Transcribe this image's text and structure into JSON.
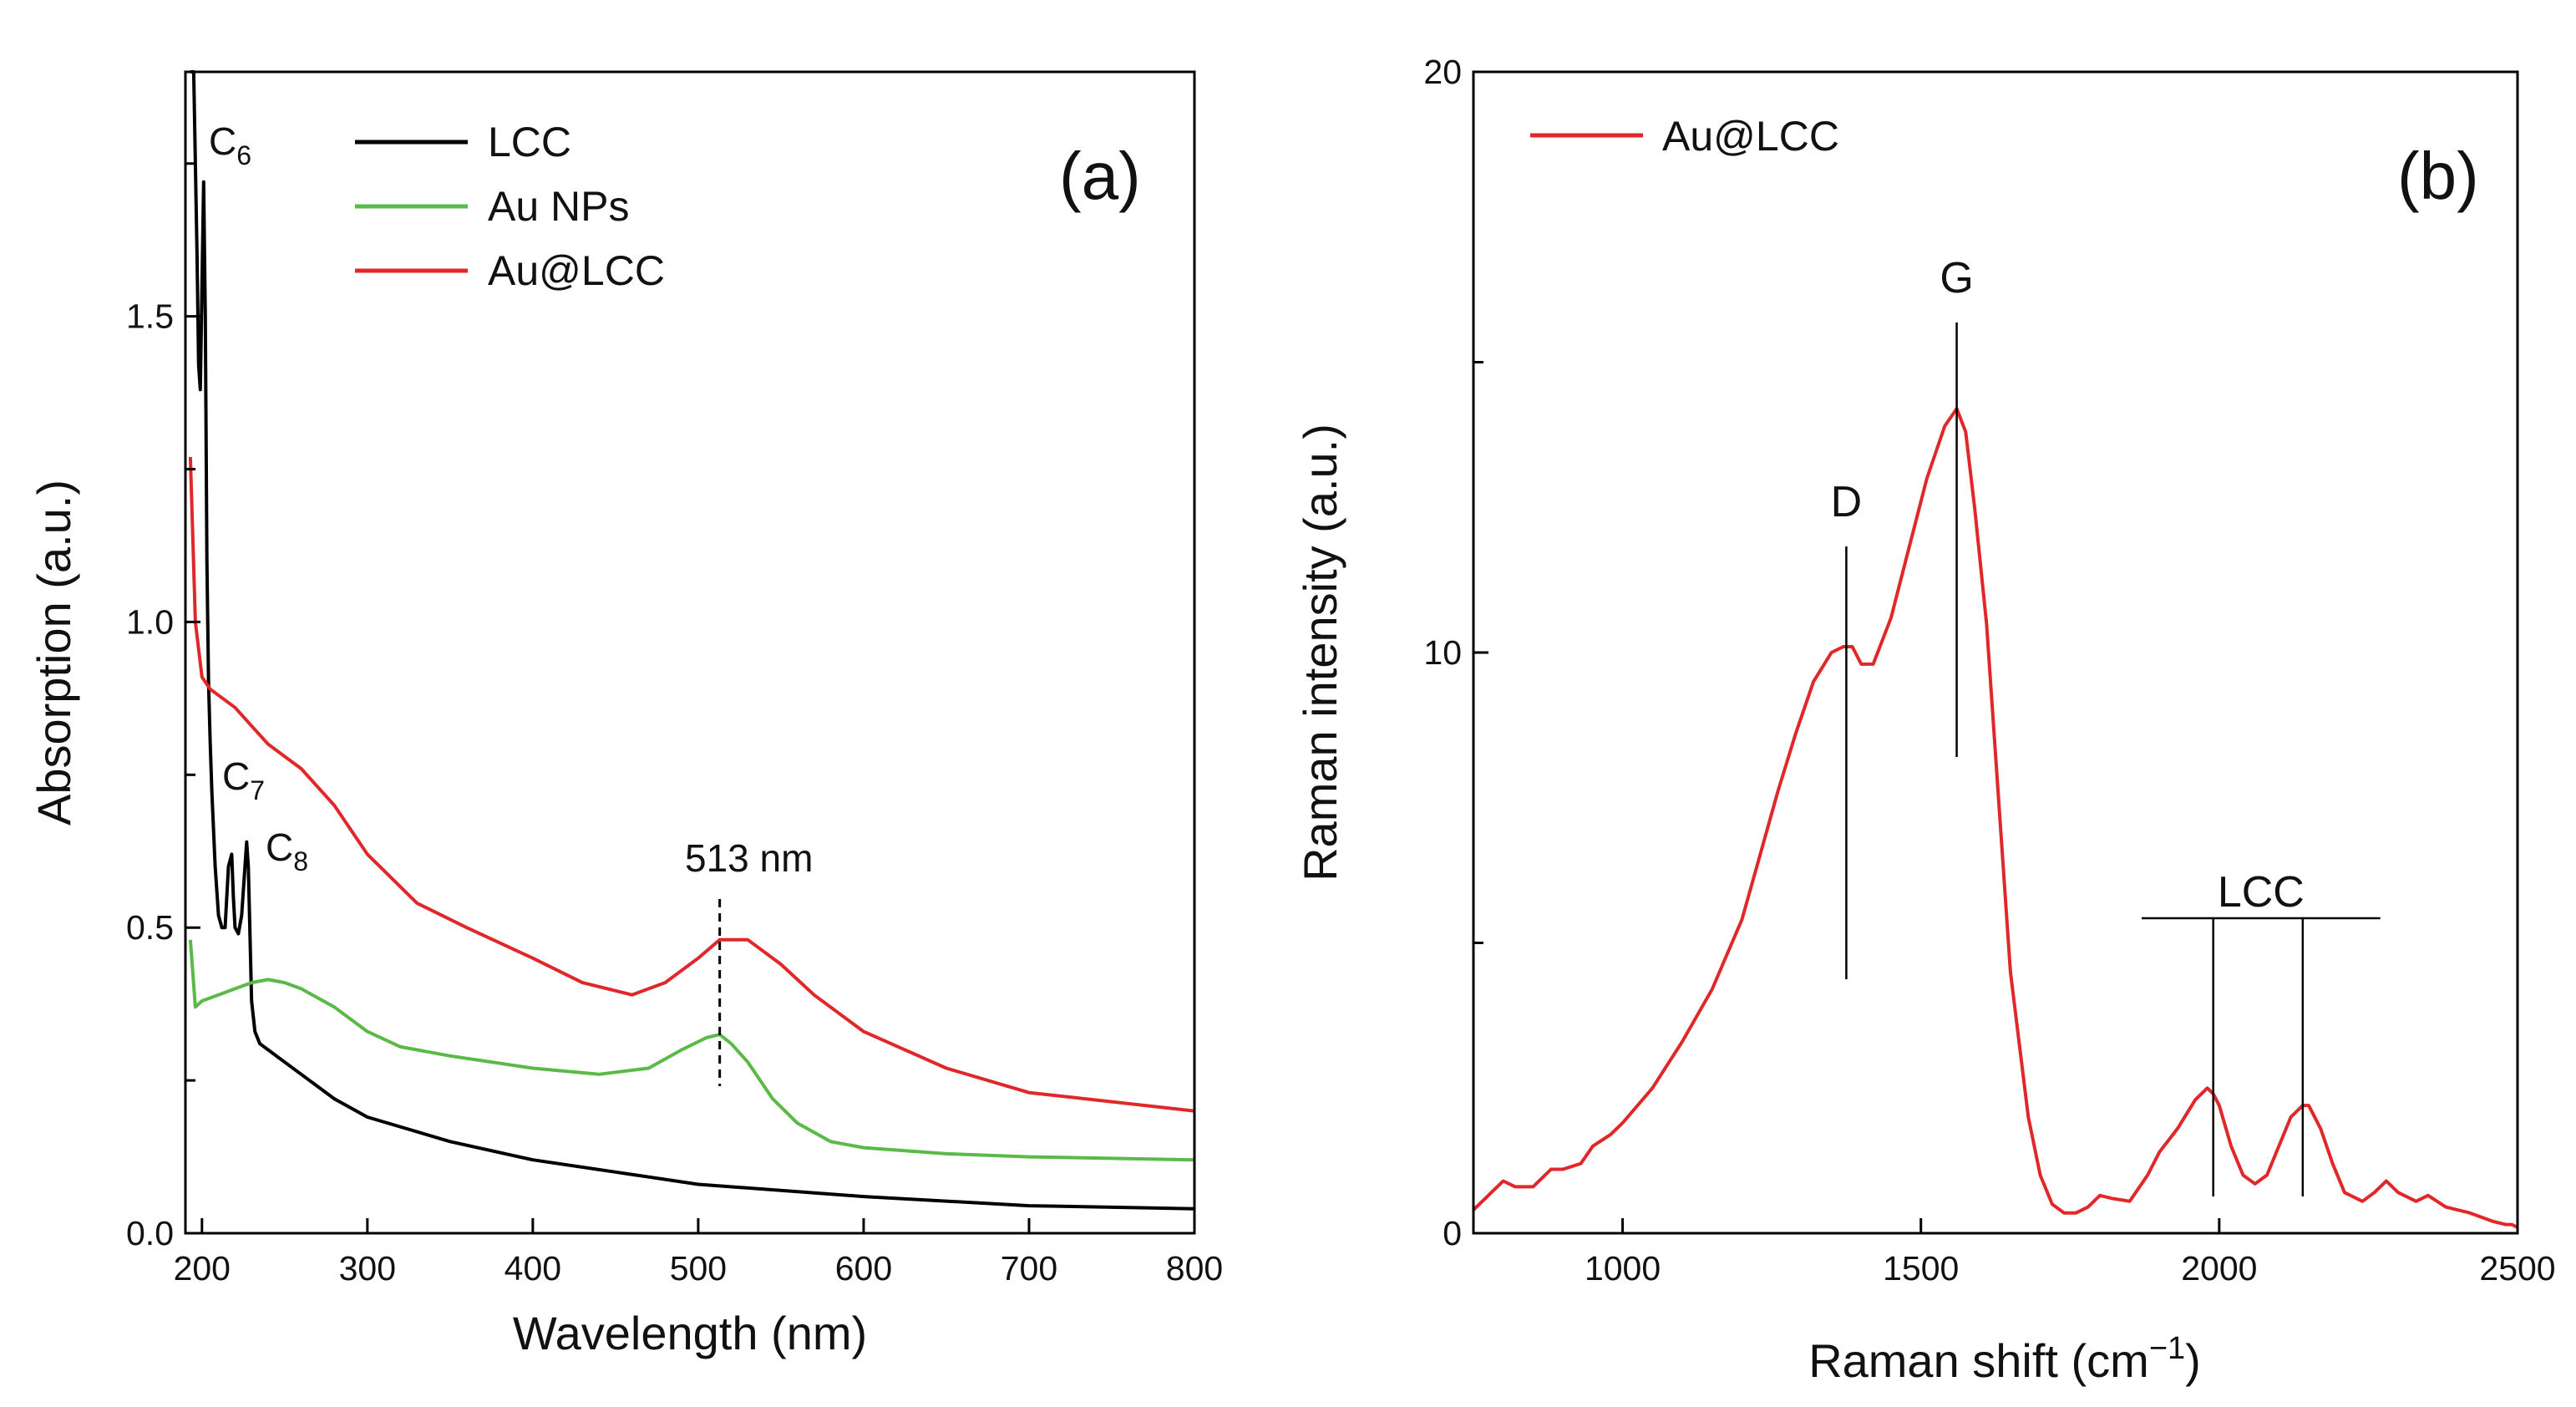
{
  "colors": {
    "LCC": "#000000",
    "Au NPs": "#5ab947",
    "Au@LCC": "#e0272a"
  },
  "chart_data": [
    {
      "type": "line",
      "panel_label": "(a)",
      "xlabel": "Wavelength (nm)",
      "ylabel": "Absorption (a.u.)",
      "xlim": [
        190,
        800
      ],
      "ylim": [
        0.0,
        1.9
      ],
      "xticks": [
        200,
        300,
        400,
        500,
        600,
        700,
        800
      ],
      "yticks": [
        0.0,
        0.5,
        1.0,
        1.5
      ],
      "xtick_labels": [
        "200",
        "300",
        "400",
        "500",
        "600",
        "700",
        "800"
      ],
      "ytick_labels": [
        "0.0",
        "0.5",
        "1.0",
        "1.5"
      ],
      "legend": {
        "position": "top-left",
        "entries": [
          "LCC",
          "Au NPs",
          "Au@LCC"
        ]
      },
      "series": [
        {
          "name": "LCC",
          "x": [
            193,
            195,
            197,
            198,
            199,
            200,
            201,
            202,
            203,
            204,
            205,
            206,
            208,
            210,
            212,
            214,
            216,
            218,
            219,
            220,
            222,
            224,
            226,
            227,
            228,
            230,
            232,
            235,
            240,
            250,
            260,
            280,
            300,
            350,
            400,
            450,
            500,
            600,
            700,
            800
          ],
          "values": [
            1.9,
            1.9,
            1.6,
            1.42,
            1.38,
            1.55,
            1.72,
            1.5,
            1.1,
            0.9,
            0.8,
            0.72,
            0.6,
            0.52,
            0.5,
            0.5,
            0.6,
            0.62,
            0.55,
            0.5,
            0.49,
            0.52,
            0.6,
            0.64,
            0.6,
            0.38,
            0.33,
            0.31,
            0.3,
            0.28,
            0.26,
            0.22,
            0.19,
            0.15,
            0.12,
            0.1,
            0.08,
            0.06,
            0.045,
            0.04
          ]
        },
        {
          "name": "Au NPs",
          "x": [
            193,
            196,
            200,
            210,
            220,
            230,
            240,
            250,
            260,
            280,
            300,
            320,
            350,
            400,
            440,
            470,
            490,
            505,
            513,
            520,
            530,
            545,
            560,
            580,
            600,
            650,
            700,
            800
          ],
          "values": [
            0.48,
            0.37,
            0.38,
            0.39,
            0.4,
            0.41,
            0.415,
            0.41,
            0.4,
            0.37,
            0.33,
            0.305,
            0.29,
            0.27,
            0.26,
            0.27,
            0.3,
            0.32,
            0.325,
            0.31,
            0.28,
            0.22,
            0.18,
            0.15,
            0.14,
            0.13,
            0.125,
            0.12
          ]
        },
        {
          "name": "Au@LCC",
          "x": [
            193,
            196,
            200,
            205,
            210,
            220,
            230,
            240,
            250,
            260,
            280,
            300,
            330,
            360,
            400,
            430,
            460,
            480,
            500,
            513,
            530,
            550,
            570,
            600,
            650,
            700,
            800
          ],
          "values": [
            1.27,
            1.0,
            0.91,
            0.89,
            0.88,
            0.86,
            0.83,
            0.8,
            0.78,
            0.76,
            0.7,
            0.62,
            0.54,
            0.5,
            0.45,
            0.41,
            0.39,
            0.41,
            0.45,
            0.48,
            0.48,
            0.44,
            0.39,
            0.33,
            0.27,
            0.23,
            0.2
          ]
        }
      ],
      "annotations": {
        "peak_label": "513 nm",
        "peak_x": 513,
        "C6": {
          "base": "C",
          "sub": "6"
        },
        "C7": {
          "base": "C",
          "sub": "7"
        },
        "C8": {
          "base": "C",
          "sub": "8"
        }
      }
    },
    {
      "type": "line",
      "panel_label": "(b)",
      "xlabel": "Raman shift (cm",
      "xlabel_superscript": "−1",
      "xlabel_suffix": ")",
      "ylabel": "Raman intensity (a.u.)",
      "xlim": [
        750,
        2500
      ],
      "ylim": [
        0,
        20
      ],
      "xticks": [
        1000,
        1500,
        2000,
        2500
      ],
      "yticks": [
        0,
        10,
        20
      ],
      "minor_yticks": [
        5,
        15
      ],
      "xtick_labels": [
        "1000",
        "1500",
        "2000",
        "2500"
      ],
      "ytick_labels": [
        "0",
        "10",
        "20"
      ],
      "legend": {
        "position": "top-left",
        "entries": [
          "Au@LCC"
        ]
      },
      "series": [
        {
          "name": "Au@LCC",
          "x": [
            750,
            780,
            800,
            820,
            850,
            880,
            900,
            930,
            950,
            980,
            1000,
            1050,
            1100,
            1150,
            1200,
            1230,
            1260,
            1290,
            1320,
            1350,
            1370,
            1385,
            1400,
            1420,
            1450,
            1480,
            1510,
            1540,
            1560,
            1575,
            1590,
            1610,
            1630,
            1650,
            1680,
            1700,
            1720,
            1740,
            1760,
            1780,
            1800,
            1820,
            1850,
            1880,
            1900,
            1930,
            1960,
            1980,
            1990,
            2000,
            2020,
            2040,
            2060,
            2080,
            2100,
            2120,
            2140,
            2150,
            2170,
            2190,
            2210,
            2240,
            2260,
            2280,
            2300,
            2330,
            2350,
            2380,
            2420,
            2460,
            2480,
            2490,
            2500
          ],
          "values": [
            0.4,
            0.7,
            0.9,
            0.8,
            0.8,
            1.1,
            1.1,
            1.2,
            1.5,
            1.7,
            1.9,
            2.5,
            3.3,
            4.2,
            5.4,
            6.5,
            7.6,
            8.6,
            9.5,
            10.0,
            10.1,
            10.1,
            9.8,
            9.8,
            10.6,
            11.8,
            13.0,
            13.9,
            14.2,
            13.8,
            12.5,
            10.5,
            7.5,
            4.5,
            2.0,
            1.0,
            0.5,
            0.35,
            0.35,
            0.45,
            0.65,
            0.6,
            0.55,
            1.0,
            1.4,
            1.8,
            2.3,
            2.5,
            2.4,
            2.2,
            1.5,
            1.0,
            0.85,
            1.0,
            1.5,
            2.0,
            2.2,
            2.2,
            1.8,
            1.2,
            0.7,
            0.55,
            0.7,
            0.9,
            0.7,
            0.55,
            0.65,
            0.45,
            0.35,
            0.2,
            0.15,
            0.15,
            0.1
          ]
        }
      ],
      "annotations": {
        "D_label": "D",
        "D_x": 1375,
        "G_label": "G",
        "G_x": 1560,
        "LCC_label": "LCC",
        "LCC_x": [
          1990,
          2140
        ],
        "LCC_bracket": [
          1870,
          2270
        ]
      }
    }
  ]
}
